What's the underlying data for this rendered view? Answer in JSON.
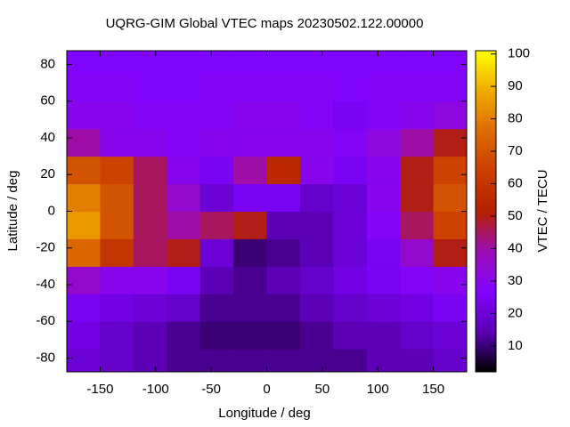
{
  "chart_data": {
    "type": "heatmap",
    "title": "UQRG-GIM Global VTEC maps 20230502.122.00000",
    "x_label": "Longitude / deg",
    "y_label": "Latitude / deg",
    "colorbar_label": "VTEC / TECU",
    "x": [
      -165,
      -135,
      -105,
      -75,
      -45,
      -15,
      15,
      45,
      75,
      105,
      135,
      165
    ],
    "y": [
      -82.5,
      -67.5,
      -52.5,
      -37.5,
      -22.5,
      -7.5,
      7.5,
      22.5,
      37.5,
      52.5,
      67.5,
      82.5
    ],
    "values": [
      [
        20,
        18,
        15,
        12,
        12,
        12,
        12,
        12,
        12,
        15,
        15,
        18
      ],
      [
        22,
        18,
        15,
        12,
        10,
        10,
        10,
        12,
        15,
        15,
        18,
        20
      ],
      [
        25,
        22,
        20,
        18,
        12,
        12,
        12,
        15,
        18,
        20,
        22,
        25
      ],
      [
        35,
        30,
        30,
        25,
        15,
        12,
        15,
        18,
        22,
        25,
        28,
        30
      ],
      [
        75,
        60,
        45,
        50,
        20,
        10,
        12,
        15,
        20,
        25,
        35,
        50
      ],
      [
        85,
        70,
        45,
        40,
        45,
        50,
        15,
        15,
        20,
        28,
        45,
        65
      ],
      [
        80,
        70,
        45,
        35,
        20,
        25,
        25,
        18,
        20,
        30,
        50,
        70
      ],
      [
        70,
        65,
        45,
        30,
        25,
        40,
        55,
        30,
        25,
        30,
        50,
        65
      ],
      [
        40,
        30,
        30,
        28,
        30,
        30,
        30,
        30,
        28,
        32,
        40,
        50
      ],
      [
        30,
        30,
        28,
        28,
        28,
        30,
        30,
        28,
        25,
        28,
        30,
        32
      ],
      [
        28,
        28,
        27,
        27,
        28,
        28,
        28,
        28,
        27,
        28,
        28,
        28
      ],
      [
        27,
        27,
        27,
        27,
        27,
        27,
        27,
        27,
        27,
        27,
        27,
        27
      ]
    ],
    "xlim": [
      -180,
      180
    ],
    "ylim": [
      -87.5,
      87.5
    ],
    "xticks": [
      -150,
      -100,
      -50,
      0,
      50,
      100,
      150
    ],
    "yticks": [
      -80,
      -60,
      -40,
      -20,
      0,
      20,
      40,
      60,
      80
    ],
    "cblim": [
      2,
      101
    ],
    "cbticks": [
      10,
      20,
      30,
      40,
      50,
      60,
      70,
      80,
      90,
      100
    ],
    "colorscale": [
      "#000000",
      "#5a00b4",
      "#8004ff",
      "#9c0db4",
      "#b42000",
      "#ca3e00",
      "#dd6b00",
      "#efab00",
      "#ffff00"
    ]
  }
}
